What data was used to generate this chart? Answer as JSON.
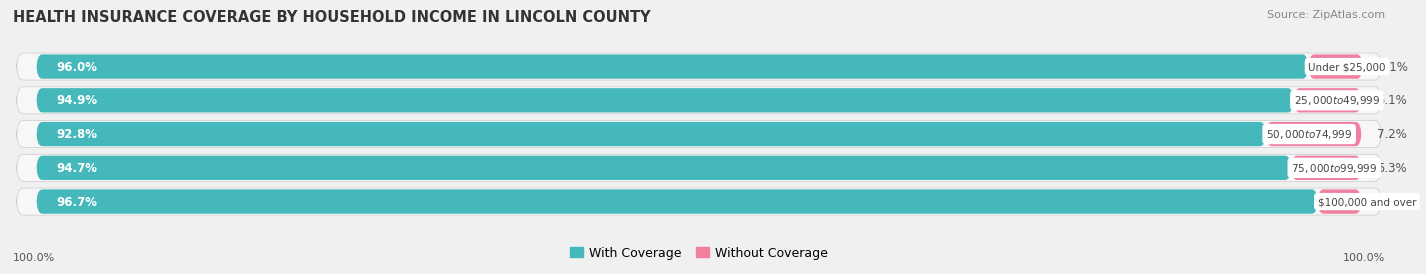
{
  "title": "HEALTH INSURANCE COVERAGE BY HOUSEHOLD INCOME IN LINCOLN COUNTY",
  "source": "Source: ZipAtlas.com",
  "categories": [
    "Under $25,000",
    "$25,000 to $49,999",
    "$50,000 to $74,999",
    "$75,000 to $99,999",
    "$100,000 and over"
  ],
  "with_coverage": [
    96.0,
    94.9,
    92.8,
    94.7,
    96.7
  ],
  "without_coverage": [
    4.1,
    5.1,
    7.2,
    5.3,
    3.3
  ],
  "color_with": "#45b8bc",
  "color_without": "#f07fa0",
  "color_with_light": "#7dd4d8",
  "background_color": "#f0f0f0",
  "bar_background": "#e0e0e0",
  "bar_row_bg": "#f8f8f8",
  "legend_labels": [
    "With Coverage",
    "Without Coverage"
  ],
  "left_label": "100.0%",
  "right_label": "100.0%"
}
